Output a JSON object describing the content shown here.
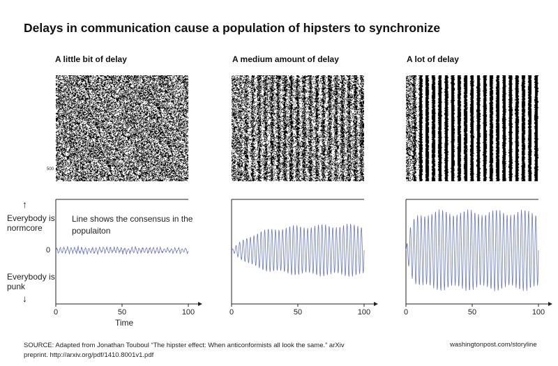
{
  "title": "Delays in communication cause a population of hipsters to synchronize",
  "panels": [
    {
      "title": "A little bit of delay",
      "amplitude_max": 0.08,
      "growth_rate": 0.0,
      "raster_sync": 0.05
    },
    {
      "title": "A medium amount of delay",
      "amplitude_max": 0.62,
      "growth_rate": 0.06,
      "raster_sync": 0.35
    },
    {
      "title": "A lot of delay",
      "amplitude_max": 0.95,
      "growth_rate": 0.25,
      "raster_sync": 0.85
    }
  ],
  "raster_tick": "500",
  "axis": {
    "ticks": [
      "0",
      "50",
      "100"
    ],
    "xlabel": "Time",
    "zero_label": "0",
    "top_label": "Everybody is normcore",
    "bottom_label": "Everybody is punk",
    "up_arrow": "↑",
    "down_arrow": "↓"
  },
  "annotation": "Line shows the consensus in the populaiton",
  "source": "SOURCE:  Adapted from Jonathan Touboul “The hipster effect: When anticonformists all look the same.” arXiv preprint. http://arxiv.org/pdf/1410.8001v1.pdf",
  "credit": "washingtonpost.com/storyline",
  "colors": {
    "line": "#6a78c0",
    "axis": "#222222",
    "raster": "#000000"
  },
  "chart_data": [
    {
      "type": "line",
      "title": "A little bit of delay",
      "xlabel": "Time",
      "ylabel": "",
      "xlim": [
        0,
        100
      ],
      "x_ticks": [
        0,
        50,
        100
      ],
      "series": [
        {
          "values_description": "small noisy oscillation around 0, amplitude ~0.08"
        }
      ]
    },
    {
      "type": "line",
      "title": "A medium amount of delay",
      "xlabel": "",
      "ylabel": "",
      "xlim": [
        0,
        100
      ],
      "x_ticks": [
        0,
        50,
        100
      ],
      "series": [
        {
          "values_description": "oscillation growing from 0 to amplitude ~0.6 by time 50"
        }
      ]
    },
    {
      "type": "line",
      "title": "A lot of delay",
      "xlabel": "",
      "ylabel": "",
      "xlim": [
        0,
        100
      ],
      "x_ticks": [
        0,
        50,
        100
      ],
      "series": [
        {
          "values_description": "oscillation quickly growing to near full amplitude by time 20"
        }
      ]
    }
  ]
}
